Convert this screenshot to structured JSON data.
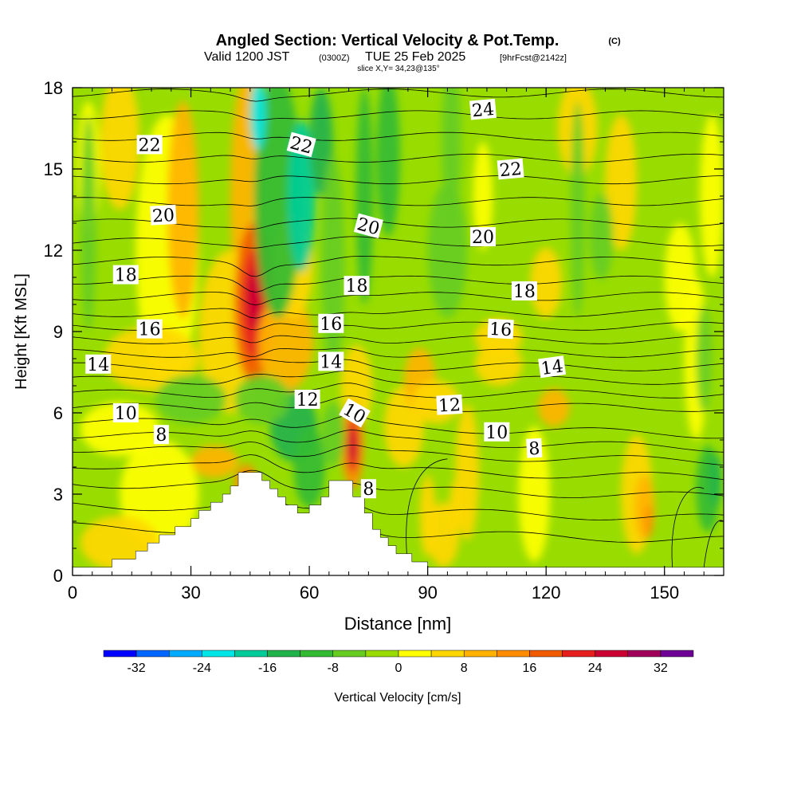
{
  "chart_data": {
    "type": "heatmap",
    "title": "Angled Section: Vertical Velocity & Pot.Temp.",
    "title_units": "(C)",
    "subtitle": {
      "valid": "Valid 1200 JST",
      "utc": "(0300Z)",
      "date": "TUE 25 Feb 2025",
      "fcst": "[9hrFcst@2142z]"
    },
    "slice": "slice X,Y= 34,23@135°",
    "xlabel": "Distance [nm]",
    "ylabel": "Height [Kft MSL]",
    "xlim": [
      0,
      165
    ],
    "ylim": [
      0,
      18
    ],
    "xticks": [
      0,
      30,
      60,
      90,
      120,
      150
    ],
    "yticks": [
      0,
      3,
      6,
      9,
      12,
      15,
      18
    ],
    "colorbar": {
      "label": "Vertical Velocity [cm/s]",
      "ticks": [
        -32,
        -24,
        -16,
        -8,
        0,
        8,
        16,
        24,
        32
      ],
      "levels": [
        -36,
        -32,
        -28,
        -24,
        -20,
        -16,
        -12,
        -8,
        -4,
        0,
        4,
        8,
        12,
        16,
        20,
        24,
        28,
        32,
        36
      ],
      "colors": [
        "#0000ff",
        "#0066ff",
        "#00aaff",
        "#00e5e5",
        "#00cc99",
        "#22b24c",
        "#33bb33",
        "#66cc22",
        "#99dd00",
        "#ffff00",
        "#ffd700",
        "#ffb300",
        "#ff8c00",
        "#f05a00",
        "#e61e1e",
        "#cc0033",
        "#a0005a",
        "#6e0096"
      ]
    },
    "theta_labels": [
      {
        "value": "24",
        "x": 104,
        "y": 17.2,
        "angle": -5
      },
      {
        "value": "22",
        "x": 19.5,
        "y": 15.9,
        "angle": 0
      },
      {
        "value": "22",
        "x": 58,
        "y": 15.9,
        "angle": 15
      },
      {
        "value": "22",
        "x": 111,
        "y": 15.0,
        "angle": -5
      },
      {
        "value": "20",
        "x": 23,
        "y": 13.3,
        "angle": -3
      },
      {
        "value": "20",
        "x": 75,
        "y": 12.9,
        "angle": 15
      },
      {
        "value": "20",
        "x": 104,
        "y": 12.5,
        "angle": 0
      },
      {
        "value": "18",
        "x": 13.5,
        "y": 11.1,
        "angle": 0
      },
      {
        "value": "18",
        "x": 72,
        "y": 10.7,
        "angle": 0
      },
      {
        "value": "18",
        "x": 114.5,
        "y": 10.5,
        "angle": 0
      },
      {
        "value": "16",
        "x": 19.5,
        "y": 9.1,
        "angle": 0
      },
      {
        "value": "16",
        "x": 65.5,
        "y": 9.3,
        "angle": 0
      },
      {
        "value": "16",
        "x": 108.5,
        "y": 9.1,
        "angle": 3
      },
      {
        "value": "14",
        "x": 6.5,
        "y": 7.8,
        "angle": 0
      },
      {
        "value": "14",
        "x": 65.5,
        "y": 7.9,
        "angle": 0
      },
      {
        "value": "14",
        "x": 121.5,
        "y": 7.7,
        "angle": -8
      },
      {
        "value": "12",
        "x": 59.5,
        "y": 6.5,
        "angle": 0
      },
      {
        "value": "12",
        "x": 95.5,
        "y": 6.3,
        "angle": -3
      },
      {
        "value": "10",
        "x": 13.5,
        "y": 6.0,
        "angle": 0
      },
      {
        "value": "10",
        "x": 71.5,
        "y": 6.0,
        "angle": 30
      },
      {
        "value": "10",
        "x": 107.5,
        "y": 5.3,
        "angle": 0
      },
      {
        "value": "8",
        "x": 22.5,
        "y": 5.2,
        "angle": 0
      },
      {
        "value": "8",
        "x": 117,
        "y": 4.7,
        "angle": -3
      },
      {
        "value": "8",
        "x": 75,
        "y": 3.2,
        "angle": 0
      }
    ],
    "terrain": [
      [
        0,
        0.3
      ],
      [
        10,
        0.3
      ],
      [
        10,
        0.6
      ],
      [
        16,
        0.6
      ],
      [
        16,
        0.9
      ],
      [
        19,
        0.9
      ],
      [
        19,
        1.2
      ],
      [
        22,
        1.2
      ],
      [
        22,
        1.5
      ],
      [
        26,
        1.5
      ],
      [
        26,
        1.8
      ],
      [
        30,
        1.8
      ],
      [
        30,
        2.1
      ],
      [
        32,
        2.1
      ],
      [
        32,
        2.4
      ],
      [
        35,
        2.4
      ],
      [
        35,
        2.7
      ],
      [
        38,
        2.7
      ],
      [
        38,
        3.0
      ],
      [
        40,
        3.0
      ],
      [
        40,
        3.3
      ],
      [
        42,
        3.3
      ],
      [
        42,
        3.8
      ],
      [
        48,
        3.8
      ],
      [
        48,
        3.5
      ],
      [
        50,
        3.5
      ],
      [
        50,
        3.2
      ],
      [
        52,
        3.2
      ],
      [
        52,
        2.9
      ],
      [
        54,
        2.9
      ],
      [
        54,
        2.6
      ],
      [
        57,
        2.6
      ],
      [
        57,
        2.3
      ],
      [
        60,
        2.3
      ],
      [
        60,
        2.6
      ],
      [
        63,
        2.6
      ],
      [
        63,
        2.9
      ],
      [
        65,
        2.9
      ],
      [
        65,
        3.5
      ],
      [
        71,
        3.5
      ],
      [
        71,
        2.9
      ],
      [
        74,
        2.9
      ],
      [
        74,
        2.3
      ],
      [
        76,
        2.3
      ],
      [
        76,
        1.7
      ],
      [
        78,
        1.7
      ],
      [
        78,
        1.4
      ],
      [
        80,
        1.4
      ],
      [
        80,
        1.1
      ],
      [
        82,
        1.1
      ],
      [
        82,
        0.8
      ],
      [
        86,
        0.8
      ],
      [
        86,
        0.5
      ],
      [
        90,
        0.5
      ],
      [
        90,
        0.3
      ],
      [
        165,
        0.3
      ]
    ],
    "grid": false
  }
}
